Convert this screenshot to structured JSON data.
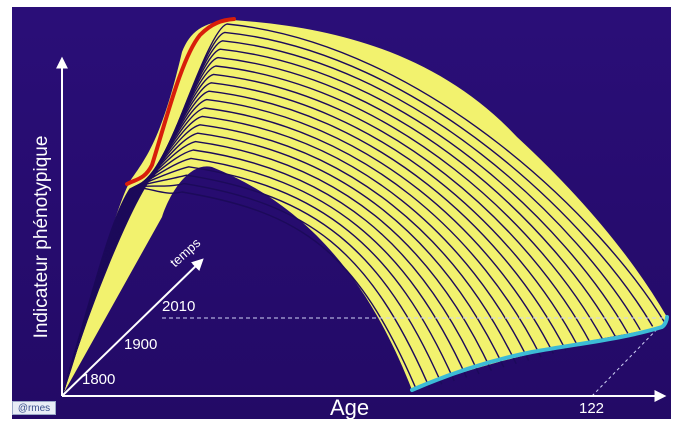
{
  "labels": {
    "y_axis": "Indicateur phénotypique",
    "x_axis": "Age",
    "x_max": "122",
    "year_1800": "1800",
    "year_1900": "1900",
    "year_2010": "2010",
    "time_arrow": "temps"
  },
  "logo": {
    "text": "@rmes"
  },
  "colors": {
    "background": "#2a0e78",
    "curve_fill": "#f2f26e",
    "curve_line": "#1c0a5a",
    "max_trend": "#d81e0a",
    "death_trend": "#3cbbd6",
    "axis": "#ffffff"
  },
  "diagram": {
    "curves_count": 21,
    "max_trend_label": "",
    "death_trend_label": ""
  }
}
